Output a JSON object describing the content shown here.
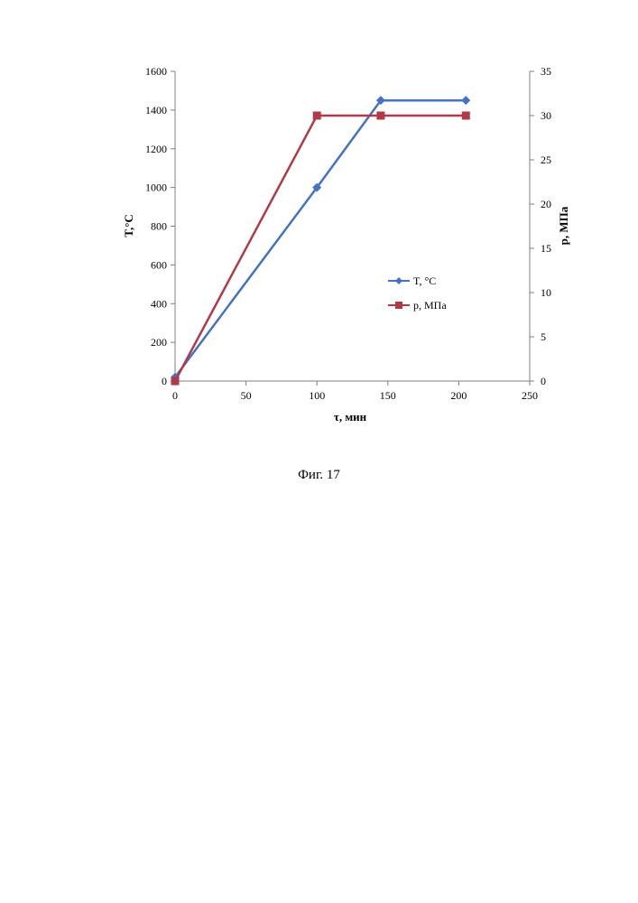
{
  "caption": "Фиг. 17",
  "chart_data": {
    "type": "line",
    "xlabel": "τ, мин",
    "ylabel": "T,°C",
    "y2label": "p, МПа",
    "xlim": [
      0,
      250
    ],
    "ylim": [
      0,
      1600
    ],
    "y2lim": [
      0,
      35
    ],
    "x_ticks": [
      "0",
      "50",
      "100",
      "150",
      "200",
      "250"
    ],
    "y_ticks": [
      "0",
      "200",
      "400",
      "600",
      "800",
      "1000",
      "1200",
      "1400",
      "1600"
    ],
    "y2_ticks": [
      "0",
      "5",
      "10",
      "15",
      "20",
      "25",
      "30",
      "35"
    ],
    "grid": false,
    "legend_position": "middle-right",
    "series": [
      {
        "name": "T, °C",
        "axis": "left",
        "color": "#4472C4",
        "marker": "diamond",
        "x": [
          0,
          100,
          145,
          205
        ],
        "y": [
          20,
          1000,
          1450,
          1450
        ]
      },
      {
        "name": "p, МПа",
        "axis": "right",
        "color": "#B03A48",
        "marker": "square",
        "x": [
          0,
          100,
          145,
          205
        ],
        "y": [
          0,
          30,
          30,
          30
        ]
      }
    ]
  }
}
